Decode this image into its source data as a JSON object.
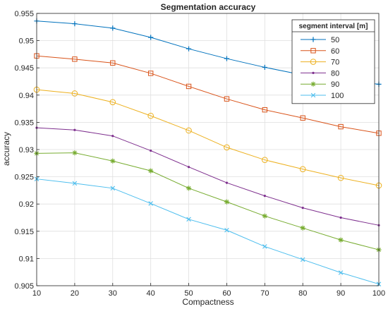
{
  "chart_data": {
    "type": "line",
    "title": "Segmentation accuracy",
    "xlabel": "Compactness",
    "ylabel": "accuracy",
    "x": [
      10,
      20,
      30,
      40,
      50,
      60,
      70,
      80,
      90,
      100
    ],
    "xlim": [
      10,
      100
    ],
    "ylim": [
      0.905,
      0.955
    ],
    "xticks": [
      "10",
      "20",
      "30",
      "40",
      "50",
      "60",
      "70",
      "80",
      "90",
      "100"
    ],
    "yticks": [
      "0.905",
      "0.91",
      "0.915",
      "0.92",
      "0.925",
      "0.93",
      "0.935",
      "0.94",
      "0.945",
      "0.95",
      "0.955"
    ],
    "grid": true,
    "legend": {
      "title": "segment interval [m]",
      "placement": "top-right"
    },
    "series": [
      {
        "name": "50",
        "color": "#0072BD",
        "marker": "plus",
        "values": [
          0.9536,
          0.9531,
          0.9523,
          0.9506,
          0.9485,
          0.9467,
          0.9451,
          0.9437,
          0.9427,
          0.942
        ]
      },
      {
        "name": "60",
        "color": "#D95319",
        "marker": "square",
        "values": [
          0.9472,
          0.9466,
          0.9459,
          0.944,
          0.9416,
          0.9393,
          0.9373,
          0.9358,
          0.9342,
          0.933
        ]
      },
      {
        "name": "70",
        "color": "#EDB120",
        "marker": "circle",
        "values": [
          0.941,
          0.9403,
          0.9387,
          0.9362,
          0.9335,
          0.9304,
          0.9281,
          0.9264,
          0.9248,
          0.9234
        ]
      },
      {
        "name": "80",
        "color": "#7E2F8E",
        "marker": "point",
        "values": [
          0.934,
          0.9336,
          0.9325,
          0.9298,
          0.9268,
          0.9239,
          0.9215,
          0.9193,
          0.9175,
          0.9161
        ]
      },
      {
        "name": "90",
        "color": "#77AC30",
        "marker": "asterisk",
        "values": [
          0.9293,
          0.9294,
          0.9279,
          0.9261,
          0.9229,
          0.9204,
          0.9178,
          0.9156,
          0.9134,
          0.9116
        ]
      },
      {
        "name": "100",
        "color": "#4DBEEE",
        "marker": "cross",
        "values": [
          0.9246,
          0.9238,
          0.9229,
          0.9201,
          0.9172,
          0.9152,
          0.9122,
          0.9098,
          0.9074,
          0.9053
        ]
      }
    ]
  }
}
